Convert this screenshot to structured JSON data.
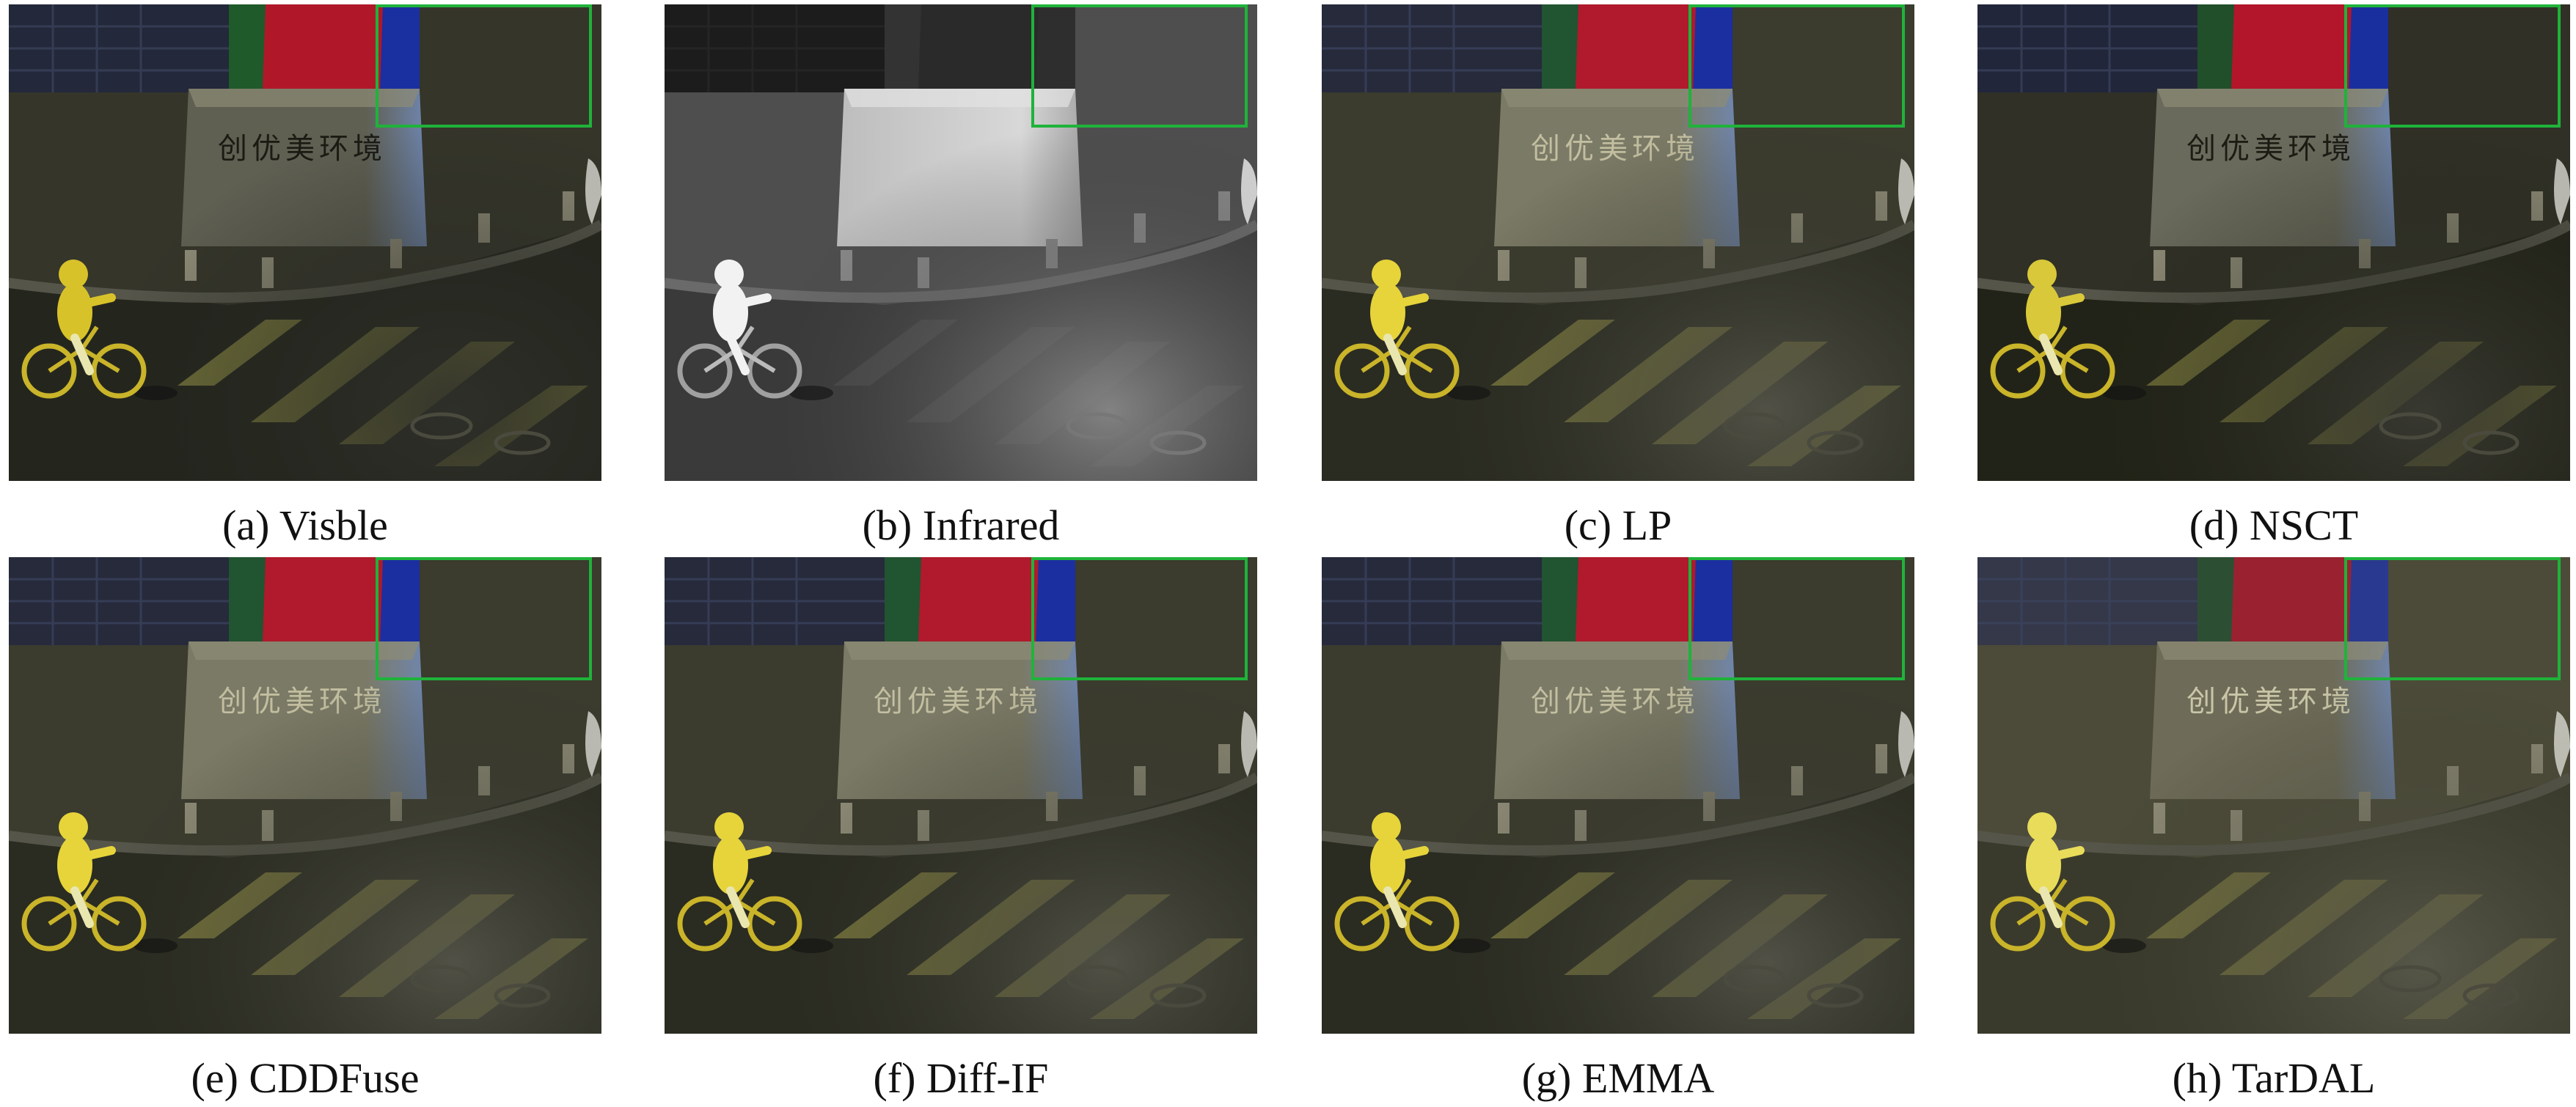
{
  "figure": {
    "panels": [
      {
        "id": "a",
        "caption": "(a) Visble",
        "style": "visible"
      },
      {
        "id": "b",
        "caption": "(b) Infrared",
        "style": "infrared"
      },
      {
        "id": "c",
        "caption": "(c) LP",
        "style": "fused"
      },
      {
        "id": "d",
        "caption": "(d) NSCT",
        "style": "fused-dark"
      },
      {
        "id": "e",
        "caption": "(e) CDDFuse",
        "style": "fused"
      },
      {
        "id": "f",
        "caption": "(f) Diff-IF",
        "style": "fused"
      },
      {
        "id": "g",
        "caption": "(g) EMMA",
        "style": "fused"
      },
      {
        "id": "h",
        "caption": "(h) TarDAL",
        "style": "fused-light"
      }
    ],
    "sign_text": "创优美环境",
    "highlight_color": "#1fb33a"
  }
}
